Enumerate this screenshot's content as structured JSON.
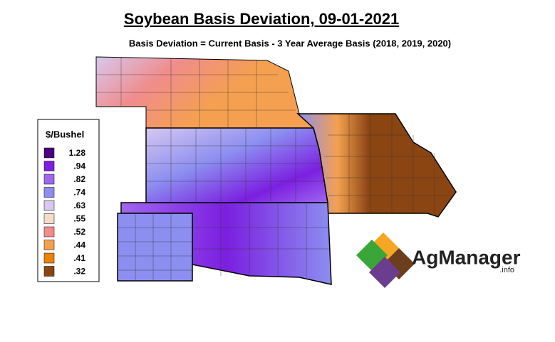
{
  "map": {
    "title": "Soybean Basis Deviation, 09-01-2021",
    "subtitle": "Basis Deviation = Current Basis - 3 Year Average Basis (2018, 2019, 2020)",
    "legend": {
      "title": "$/Bushel",
      "items": [
        {
          "label": "1.28",
          "color": "#4b0082"
        },
        {
          "label": ".94",
          "color": "#7b1fe0"
        },
        {
          "label": ".82",
          "color": "#a066f0"
        },
        {
          "label": ".74",
          "color": "#8c8ef0"
        },
        {
          "label": ".63",
          "color": "#d6c8f0"
        },
        {
          "label": ".55",
          "color": "#f5dcc8"
        },
        {
          "label": ".52",
          "color": "#f08c8c"
        },
        {
          "label": ".44",
          "color": "#f5a050"
        },
        {
          "label": ".41",
          "color": "#e8820a"
        },
        {
          "label": ".32",
          "color": "#8b4513"
        }
      ]
    },
    "logo": {
      "name": "AgManager",
      "suffix": ".info"
    }
  }
}
